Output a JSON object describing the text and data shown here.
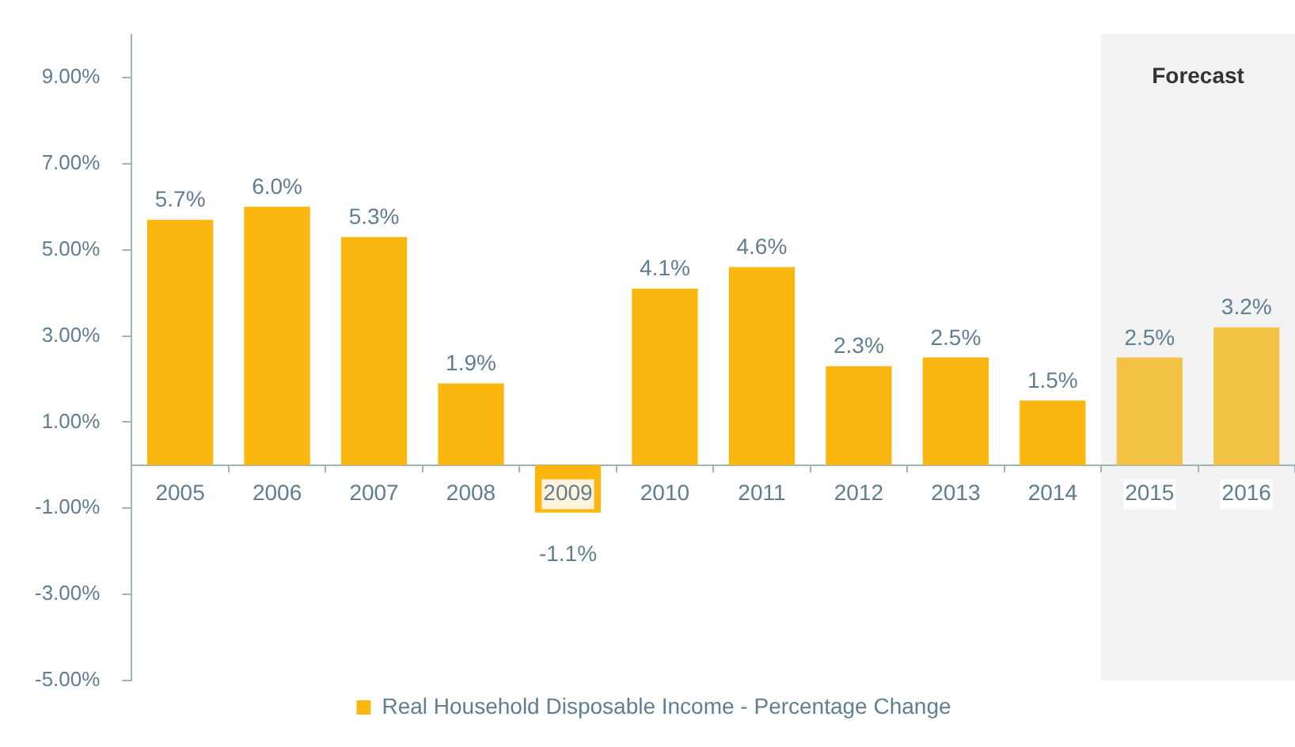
{
  "chart_data": {
    "type": "bar",
    "categories": [
      "2005",
      "2006",
      "2007",
      "2008",
      "2009",
      "2010",
      "2011",
      "2012",
      "2013",
      "2014",
      "2015",
      "2016"
    ],
    "series": [
      {
        "name": "Real Household Disposable Income - Percentage Change",
        "color": "#fbb710",
        "colors": [
          "#fbb710",
          "#fbb710",
          "#fbb710",
          "#fbb710",
          "#fbb710",
          "#fbb710",
          "#fbb710",
          "#fbb710",
          "#fbb710",
          "#fbb710",
          "#f2c244",
          "#f2c244"
        ],
        "values": [
          5.7,
          6.0,
          5.3,
          1.9,
          -1.1,
          4.1,
          4.6,
          2.3,
          2.5,
          1.5,
          2.5,
          3.2
        ],
        "value_labels": [
          "5.7%",
          "6.0%",
          "5.3%",
          "1.9%",
          "-1.1%",
          "4.1%",
          "4.6%",
          "2.3%",
          "2.5%",
          "1.5%",
          "2.5%",
          "3.2%"
        ]
      }
    ],
    "ylim": [
      -5,
      10
    ],
    "yticks": [
      {
        "value": -5,
        "label": "-5.00%"
      },
      {
        "value": -3,
        "label": "-3.00%"
      },
      {
        "value": -1,
        "label": "-1.00%"
      },
      {
        "value": 1,
        "label": "1.00%"
      },
      {
        "value": 3,
        "label": "3.00%"
      },
      {
        "value": 5,
        "label": "5.00%"
      },
      {
        "value": 7,
        "label": "7.00%"
      },
      {
        "value": 9,
        "label": "9.00%"
      }
    ],
    "bands": [
      {
        "axis": "x",
        "from": "2015",
        "to": "2016",
        "label": "Forecast",
        "color": "#f2f2f2"
      }
    ],
    "grid": false,
    "legend": "bottom"
  }
}
